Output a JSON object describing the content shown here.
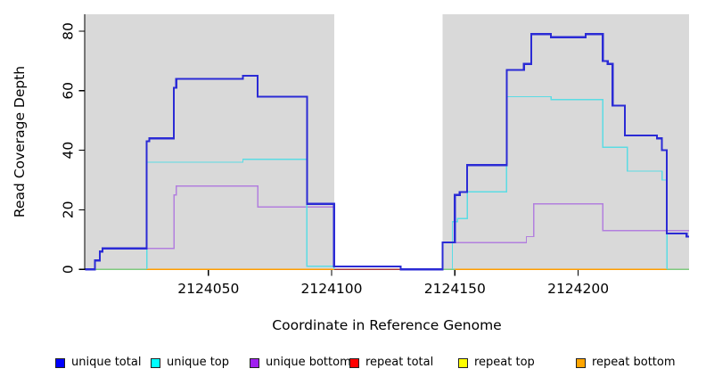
{
  "chart_data": {
    "type": "step-line",
    "title": "",
    "xlabel": "Coordinate in Reference Genome",
    "ylabel": "Read Coverage Depth",
    "xlim": [
      2124000,
      2124245
    ],
    "ylim": [
      0,
      80
    ],
    "xticks": [
      2124050,
      2124100,
      2124150,
      2124200
    ],
    "yticks": [
      0,
      20,
      40,
      60,
      80
    ],
    "background_color": "#ffffff",
    "shaded_region_color": "#d9d9d9",
    "shaded_regions": [
      [
        2124000,
        2124101
      ],
      [
        2124145,
        2124245
      ]
    ],
    "overlap_zero_segments": {
      "comment": "baseline stretches where cyan/orange zero lines blend to green",
      "color": "#7ec97e",
      "segments": [
        [
          2124000,
          2124025
        ],
        [
          2124145,
          2124150
        ],
        [
          2124236,
          2124245
        ]
      ]
    },
    "series": [
      {
        "name": "unique total",
        "legend_color": "#0000ff",
        "line_color": "#2b2bd5",
        "line_width": 2.2,
        "segments": [
          [
            [
              2124000,
              0
            ],
            [
              2124004,
              3
            ],
            [
              2124006,
              6
            ],
            [
              2124007,
              7
            ],
            [
              2124025,
              43
            ],
            [
              2124026,
              44
            ],
            [
              2124036,
              61
            ],
            [
              2124037,
              64
            ],
            [
              2124064,
              65
            ],
            [
              2124070,
              58
            ],
            [
              2124090,
              22
            ],
            [
              2124101,
              1
            ],
            [
              2124128,
              0
            ],
            [
              2124145,
              9
            ],
            [
              2124150,
              25
            ],
            [
              2124152,
              26
            ],
            [
              2124155,
              35
            ],
            [
              2124171,
              67
            ],
            [
              2124178,
              69
            ],
            [
              2124181,
              79
            ],
            [
              2124189,
              78
            ],
            [
              2124203,
              79
            ],
            [
              2124210,
              70
            ],
            [
              2124212,
              69
            ],
            [
              2124214,
              55
            ],
            [
              2124219,
              45
            ],
            [
              2124232,
              44
            ],
            [
              2124234,
              40
            ],
            [
              2124236,
              12
            ],
            [
              2124244,
              11
            ],
            [
              2124245,
              11
            ]
          ]
        ]
      },
      {
        "name": "unique top",
        "legend_color": "#00ffff",
        "line_color": "#5bdce4",
        "line_width": 1.4,
        "segments": [
          [
            [
              2124025,
              0
            ],
            [
              2124025,
              36
            ],
            [
              2124064,
              37
            ],
            [
              2124090,
              1
            ],
            [
              2124101,
              0
            ]
          ],
          [
            [
              2124149,
              0
            ],
            [
              2124149,
              16
            ],
            [
              2124151,
              17
            ],
            [
              2124155,
              26
            ],
            [
              2124171,
              58
            ],
            [
              2124189,
              57
            ],
            [
              2124210,
              41
            ],
            [
              2124220,
              33
            ],
            [
              2124234,
              30
            ],
            [
              2124236,
              0
            ]
          ]
        ]
      },
      {
        "name": "unique bottom",
        "legend_color": "#a020f0",
        "line_color": "#b27fde",
        "line_width": 1.4,
        "segments": [
          [
            [
              2124025,
              0
            ],
            [
              2124025,
              7
            ],
            [
              2124036,
              25
            ],
            [
              2124037,
              28
            ],
            [
              2124070,
              21
            ],
            [
              2124101,
              0
            ]
          ],
          [
            [
              2124149,
              0
            ],
            [
              2124149,
              9
            ],
            [
              2124179,
              11
            ],
            [
              2124182,
              22
            ],
            [
              2124210,
              13
            ],
            [
              2124245,
              13
            ]
          ]
        ]
      },
      {
        "name": "repeat total",
        "legend_color": "#ff0000",
        "line_color": "#a83a3a",
        "line_width": 1.6,
        "segments": [
          [
            [
              2124101,
              0
            ],
            [
              2124145,
              0
            ]
          ]
        ]
      },
      {
        "name": "repeat top",
        "legend_color": "#ffff00",
        "line_color": "#ffff00",
        "line_width": 1.4,
        "segments": []
      },
      {
        "name": "repeat bottom",
        "legend_color": "#ffa500",
        "line_color": "#ff9d00",
        "line_width": 1.9,
        "segments": [
          [
            [
              2124025,
              0
            ],
            [
              2124101,
              0
            ]
          ],
          [
            [
              2124150,
              0
            ],
            [
              2124236,
              0
            ]
          ]
        ]
      }
    ]
  }
}
